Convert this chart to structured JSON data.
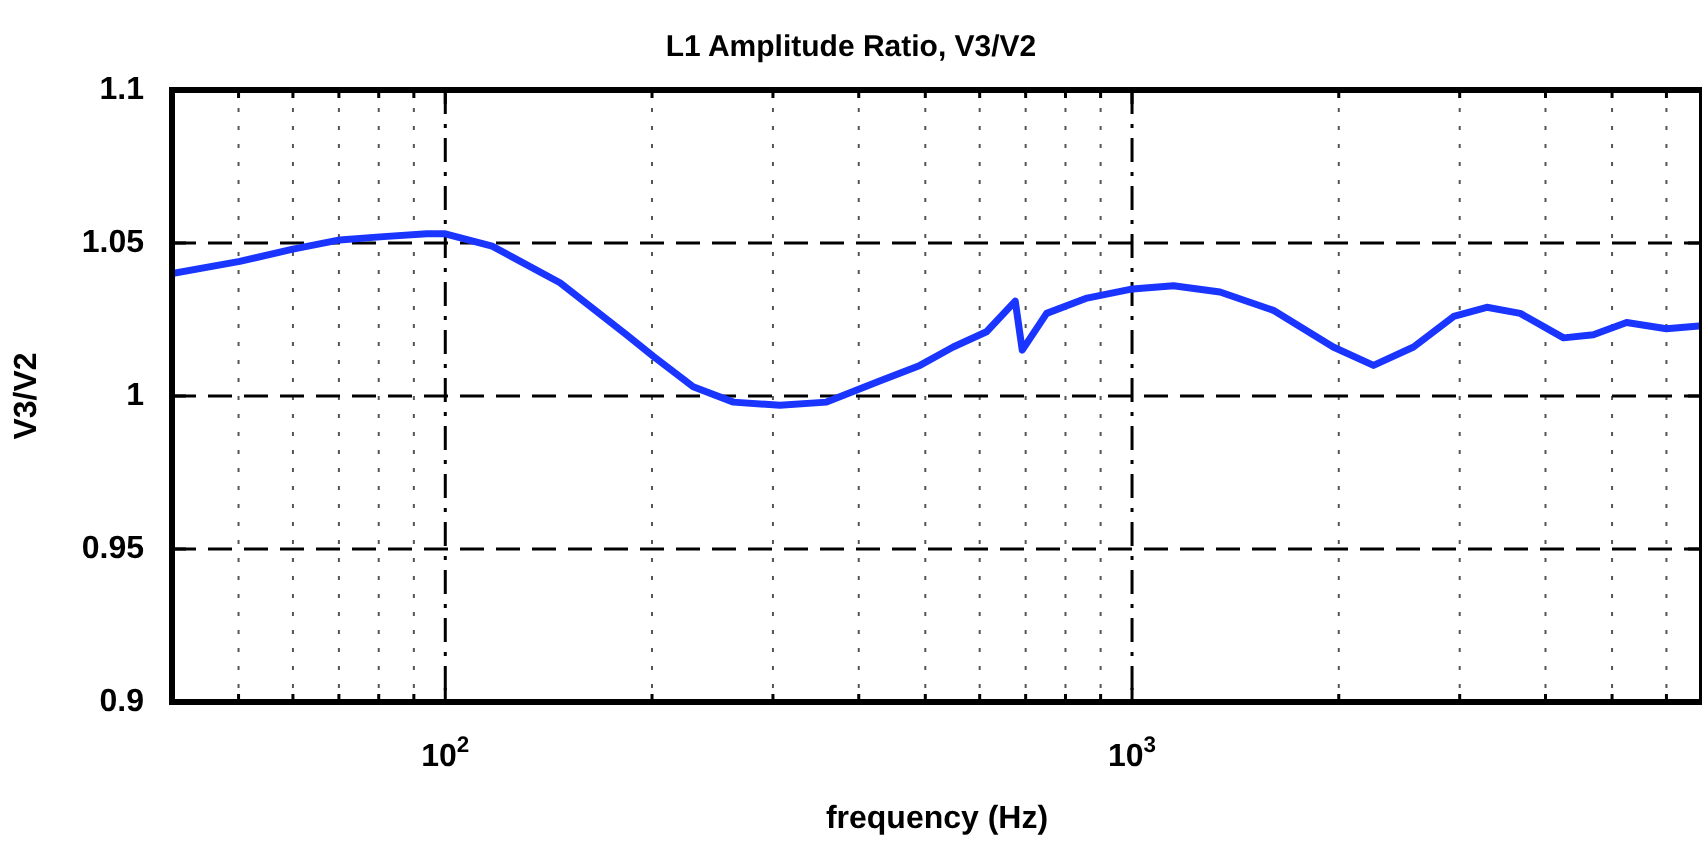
{
  "chart_data": {
    "type": "line",
    "title": "L1 Amplitude Ratio, V3/V2",
    "xlabel": "frequency (Hz)",
    "ylabel": "V3/V2",
    "log": "x",
    "xlim": [
      40,
      6760
    ],
    "ylim": [
      0.9,
      1.1
    ],
    "xticks": [
      {
        "value": 40,
        "label": null
      },
      {
        "value": 50,
        "label": null
      },
      {
        "value": 60,
        "label": null
      },
      {
        "value": 70,
        "label": null
      },
      {
        "value": 80,
        "label": null
      },
      {
        "value": 90,
        "label": null
      },
      {
        "value": 100,
        "label": "10$^{2}$"
      },
      {
        "value": 200,
        "label": null
      },
      {
        "value": 300,
        "label": null
      },
      {
        "value": 400,
        "label": null
      },
      {
        "value": 500,
        "label": null
      },
      {
        "value": 600,
        "label": null
      },
      {
        "value": 700,
        "label": null
      },
      {
        "value": 800,
        "label": null
      },
      {
        "value": 900,
        "label": null
      },
      {
        "value": 1000,
        "label": "10$^{3}$"
      },
      {
        "value": 2000,
        "label": null
      },
      {
        "value": 3000,
        "label": null
      },
      {
        "value": 4000,
        "label": null
      },
      {
        "value": 5000,
        "label": null
      },
      {
        "value": 6000,
        "label": null
      }
    ],
    "yticks": [
      0.9,
      0.95,
      1,
      1.05,
      1.1
    ],
    "grid": true,
    "legend": false,
    "series": [
      {
        "color": "#1a35ff",
        "x": [
          40,
          50.2,
          60,
          70.2,
          80.3,
          94,
          100,
          117,
          146.9,
          183.6,
          200.8,
          229.6,
          262.8,
          307,
          359,
          430,
          491,
          549,
          614,
          676,
          692,
          751,
          860,
          1002,
          1149,
          1343,
          1606,
          1963,
          2247,
          2570,
          2940,
          3286,
          3675,
          4250,
          4696,
          5250,
          6000,
          6760
        ],
        "values": [
          1.04,
          1.044,
          1.048,
          1.051,
          1.052,
          1.053,
          1.053,
          1.049,
          1.037,
          1.02,
          1.013,
          1.003,
          0.998,
          0.997,
          0.998,
          1.005,
          1.01,
          1.016,
          1.021,
          1.031,
          1.015,
          1.027,
          1.032,
          1.035,
          1.036,
          1.034,
          1.028,
          1.016,
          1.01,
          1.016,
          1.026,
          1.029,
          1.027,
          1.019,
          1.02,
          1.024,
          1.022,
          1.023
        ]
      }
    ]
  }
}
